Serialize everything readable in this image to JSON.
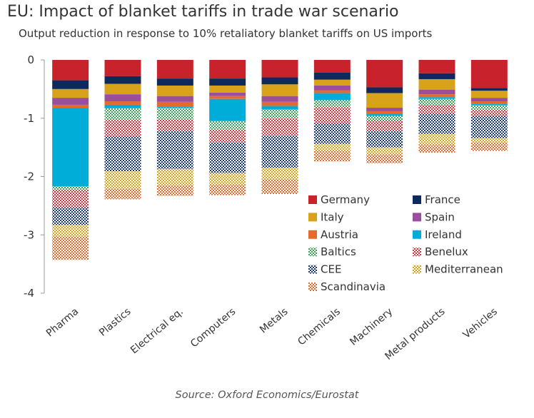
{
  "title": "EU: Impact of blanket tariffs in trade war scenario",
  "subtitle": "Output reduction in response to 10% retaliatory blanket tariffs on US imports",
  "source": "Source: Oxford Economics/Eurostat",
  "chart_data": {
    "type": "bar",
    "stacked": true,
    "ylim": [
      -4,
      0
    ],
    "yticks": [
      0,
      -1,
      -2,
      -3,
      -4
    ],
    "categories": [
      "Pharma",
      "Plastics",
      "Electrical eq.",
      "Computers",
      "Metals",
      "Chemicals",
      "Machinery",
      "Metal products",
      "Vehicles"
    ],
    "series": [
      {
        "name": "Germany",
        "color": "#C8232C",
        "pattern": "solid",
        "values": [
          -0.35,
          -0.28,
          -0.32,
          -0.32,
          -0.3,
          -0.22,
          -0.47,
          -0.23,
          -0.48
        ]
      },
      {
        "name": "France",
        "color": "#0E2A5C",
        "pattern": "solid",
        "values": [
          -0.15,
          -0.13,
          -0.12,
          -0.12,
          -0.12,
          -0.12,
          -0.1,
          -0.1,
          -0.05
        ]
      },
      {
        "name": "Italy",
        "color": "#D9A21B",
        "pattern": "solid",
        "values": [
          -0.15,
          -0.18,
          -0.18,
          -0.12,
          -0.2,
          -0.1,
          -0.25,
          -0.18,
          -0.12
        ]
      },
      {
        "name": "Spain",
        "color": "#9B4E9E",
        "pattern": "solid",
        "values": [
          -0.12,
          -0.12,
          -0.1,
          -0.06,
          -0.1,
          -0.08,
          -0.06,
          -0.08,
          -0.06
        ]
      },
      {
        "name": "Austria",
        "color": "#E56A2C",
        "pattern": "solid",
        "values": [
          -0.05,
          -0.06,
          -0.08,
          -0.05,
          -0.07,
          -0.05,
          -0.05,
          -0.05,
          -0.04
        ]
      },
      {
        "name": "Ireland",
        "color": "#00ADD8",
        "pattern": "solid",
        "values": [
          -1.35,
          -0.06,
          -0.02,
          -0.38,
          -0.06,
          -0.12,
          -0.03,
          -0.03,
          -0.03
        ]
      },
      {
        "name": "Baltics",
        "color": "#3FA55A",
        "pattern": "check",
        "values": [
          -0.06,
          -0.2,
          -0.2,
          -0.15,
          -0.15,
          -0.12,
          -0.08,
          -0.1,
          -0.08
        ]
      },
      {
        "name": "Benelux",
        "color": "#D6323C",
        "pattern": "check",
        "values": [
          -0.3,
          -0.28,
          -0.2,
          -0.22,
          -0.3,
          -0.28,
          -0.18,
          -0.15,
          -0.1
        ]
      },
      {
        "name": "CEE",
        "color": "#1A3A7A",
        "pattern": "check",
        "values": [
          -0.3,
          -0.6,
          -0.65,
          -0.52,
          -0.55,
          -0.35,
          -0.28,
          -0.35,
          -0.38
        ]
      },
      {
        "name": "Mediterranean",
        "color": "#D9A21B",
        "pattern": "check",
        "values": [
          -0.2,
          -0.3,
          -0.28,
          -0.2,
          -0.2,
          -0.12,
          -0.12,
          -0.18,
          -0.08
        ]
      },
      {
        "name": "Scandinavia",
        "color": "#E56A2C",
        "pattern": "check",
        "values": [
          -0.4,
          -0.18,
          -0.18,
          -0.18,
          -0.25,
          -0.18,
          -0.15,
          -0.14,
          -0.14
        ]
      }
    ],
    "grid": false,
    "legend": "inside-bottom-right"
  },
  "legend": {
    "col1": [
      "Germany",
      "Italy",
      "Austria",
      "Baltics",
      "CEE",
      "Scandinavia"
    ],
    "col2": [
      "France",
      "Spain",
      "Ireland",
      "Benelux",
      "Mediterranean"
    ]
  },
  "colors": {
    "Germany": "#C8232C",
    "France": "#0E2A5C",
    "Italy": "#D9A21B",
    "Spain": "#9B4E9E",
    "Austria": "#E56A2C",
    "Ireland": "#00ADD8",
    "Baltics": "#3FA55A",
    "Benelux": "#D6323C",
    "CEE": "#1A3A7A",
    "Mediterranean": "#D9A21B",
    "Scandinavia": "#E56A2C"
  }
}
